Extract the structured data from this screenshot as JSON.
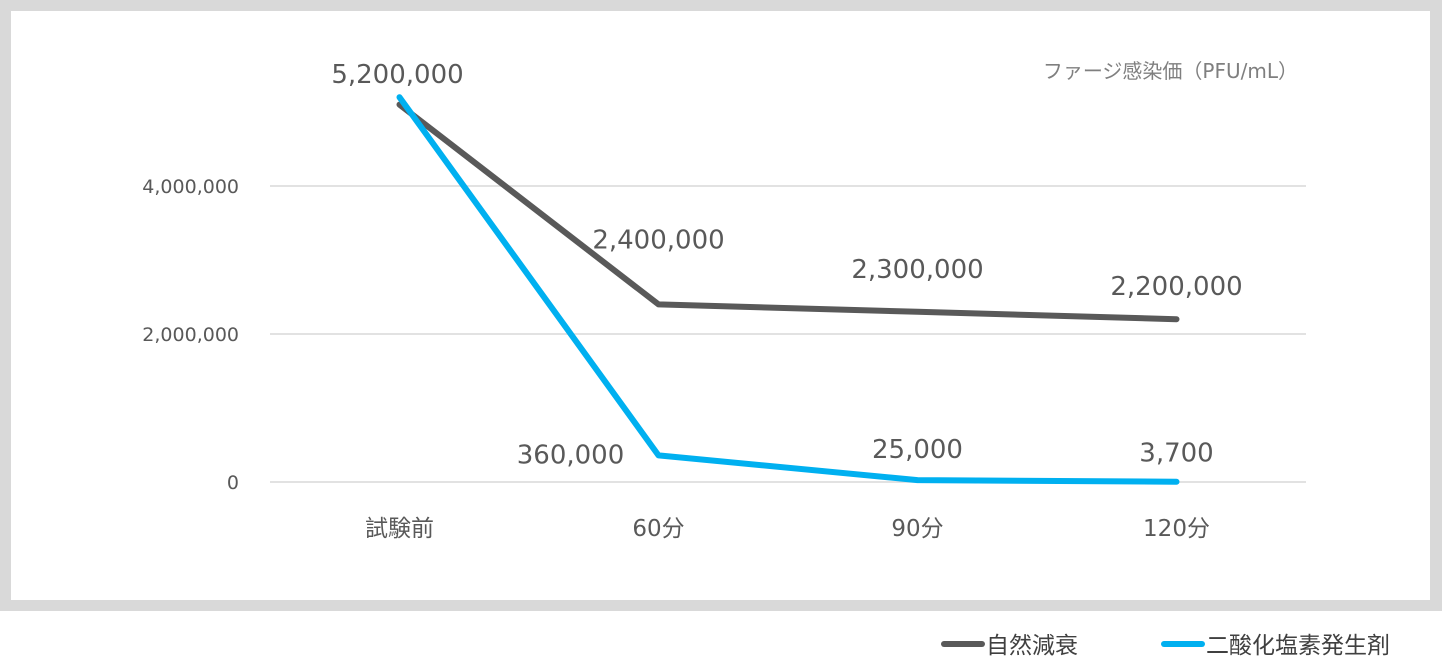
{
  "chart_data": {
    "type": "line",
    "title": "",
    "unit_label": "ファージ感染価（PFU/mL）",
    "categories": [
      "試験前",
      "60分",
      "90分",
      "120分"
    ],
    "y_ticks": [
      "0",
      "2,000,000",
      "4,000,000"
    ],
    "ylim": [
      0,
      5800000
    ],
    "grid": true,
    "legend_position": "bottom-right",
    "series": [
      {
        "name": "自然減衰",
        "color": "#595959",
        "values": [
          5100000,
          2400000,
          2300000,
          2200000
        ],
        "labels": [
          "",
          "2,400,000",
          "2,300,000",
          "2,200,000"
        ]
      },
      {
        "name": "二酸化塩素発生剤",
        "color": "#00b0f0",
        "values": [
          5200000,
          360000,
          25000,
          3700
        ],
        "labels": [
          "5,200,000",
          "360,000",
          "25,000",
          "3,700"
        ]
      }
    ]
  }
}
